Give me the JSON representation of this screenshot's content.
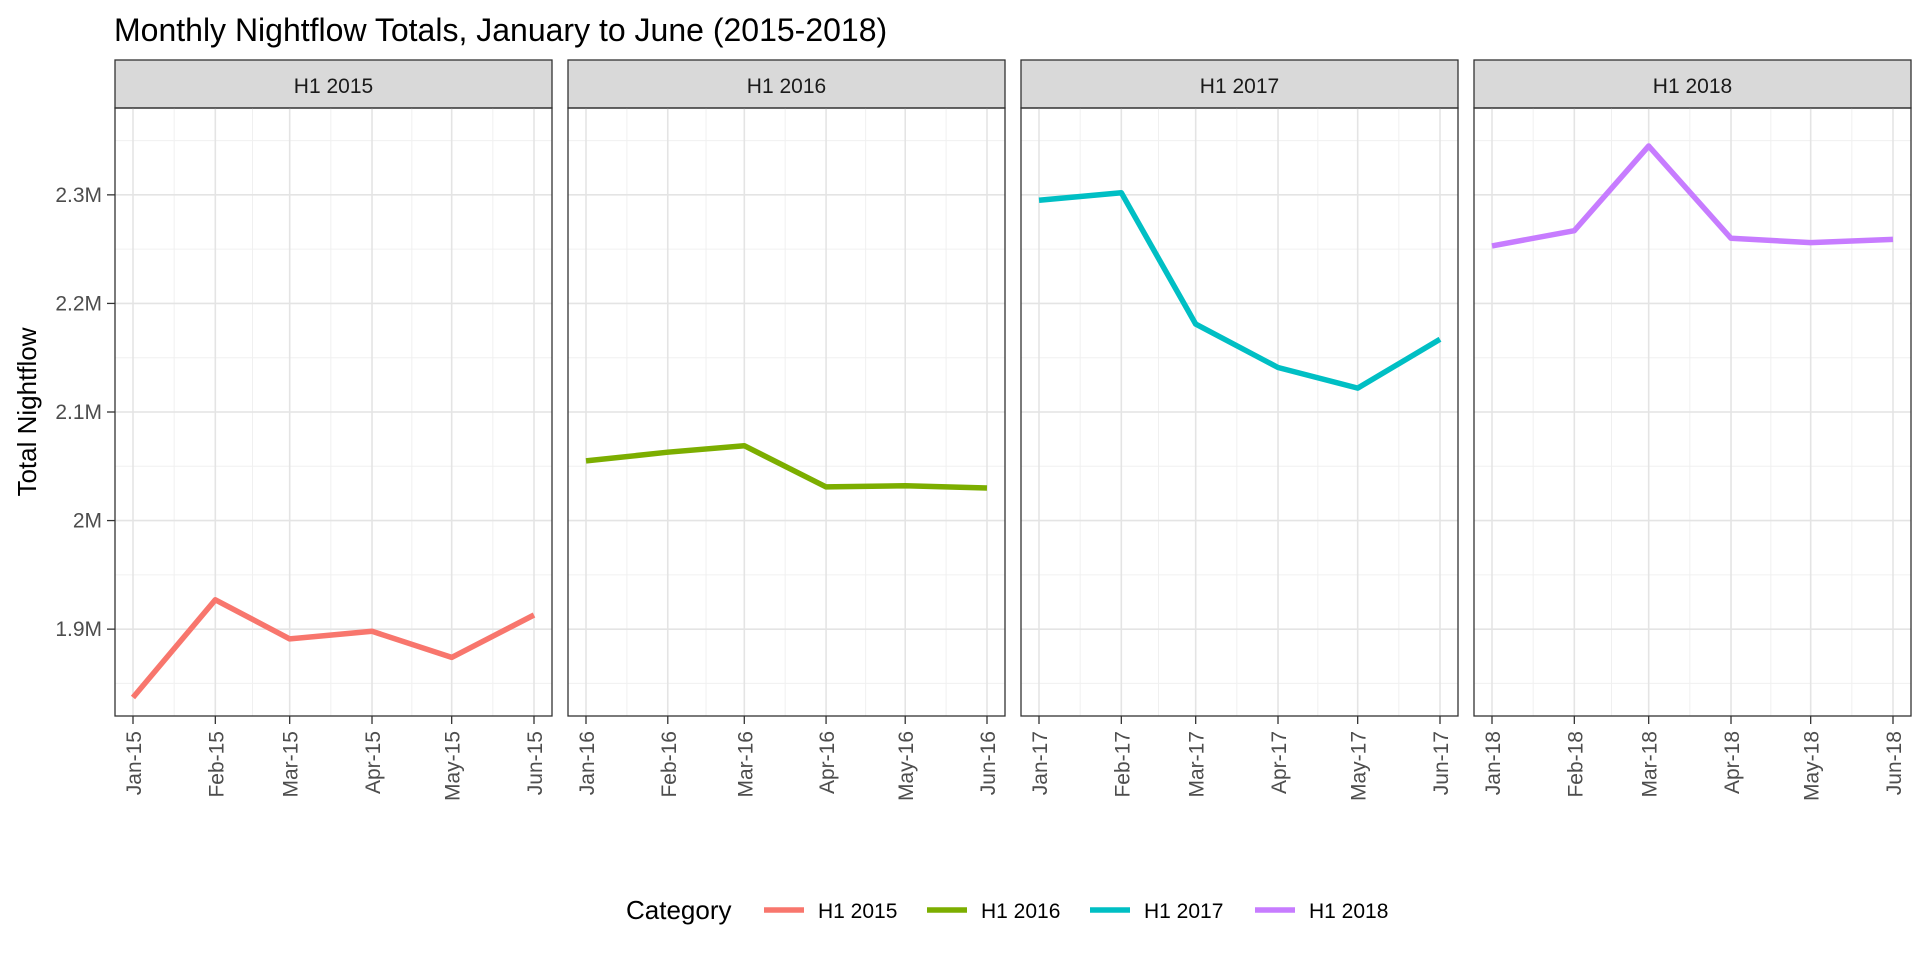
{
  "chart_data": {
    "type": "line",
    "title": "Monthly Nightflow Totals, January to June (2015-2018)",
    "ylabel": "Total Nightflow",
    "xlabel": "",
    "ylim": [
      1820000,
      2380000
    ],
    "yticks": [
      1900000,
      2000000,
      2100000,
      2200000,
      2300000
    ],
    "ytick_labels": [
      "1.9M",
      "2M",
      "2.1M",
      "2.2M",
      "2.3M"
    ],
    "grid": true,
    "legend": {
      "title": "Category",
      "position": "bottom",
      "entries": [
        "H1 2015",
        "H1 2016",
        "H1 2017",
        "H1 2018"
      ]
    },
    "series": [
      {
        "name": "H1 2015",
        "color": "#F8766D",
        "x": [
          "2015-01-01",
          "2015-02-01",
          "2015-03-01",
          "2015-04-01",
          "2015-05-01",
          "2015-06-01"
        ],
        "tick_labels": [
          "Jan-15",
          "Feb-15",
          "Mar-15",
          "Apr-15",
          "May-15",
          "Jun-15"
        ],
        "values": [
          1837000,
          1927000,
          1891000,
          1898000,
          1874000,
          1913000
        ]
      },
      {
        "name": "H1 2016",
        "color": "#7CAE00",
        "x": [
          "2016-01-01",
          "2016-02-01",
          "2016-03-01",
          "2016-04-01",
          "2016-05-01",
          "2016-06-01"
        ],
        "tick_labels": [
          "Jan-16",
          "Feb-16",
          "Mar-16",
          "Apr-16",
          "May-16",
          "Jun-16"
        ],
        "values": [
          2055000,
          2063000,
          2069000,
          2031000,
          2032000,
          2030000
        ]
      },
      {
        "name": "H1 2017",
        "color": "#00BFC4",
        "x": [
          "2017-01-01",
          "2017-02-01",
          "2017-03-01",
          "2017-04-01",
          "2017-05-01",
          "2017-06-01"
        ],
        "tick_labels": [
          "Jan-17",
          "Feb-17",
          "Mar-17",
          "Apr-17",
          "May-17",
          "Jun-17"
        ],
        "values": [
          2295000,
          2302000,
          2181000,
          2141000,
          2122000,
          2167000
        ]
      },
      {
        "name": "H1 2018",
        "color": "#C77CFF",
        "x": [
          "2018-01-01",
          "2018-02-01",
          "2018-03-01",
          "2018-04-01",
          "2018-05-01",
          "2018-06-01"
        ],
        "tick_labels": [
          "Jan-18",
          "Feb-18",
          "Mar-18",
          "Apr-18",
          "May-18",
          "Jun-18"
        ],
        "values": [
          2253000,
          2267000,
          2345000,
          2260000,
          2256000,
          2259000
        ]
      }
    ]
  }
}
